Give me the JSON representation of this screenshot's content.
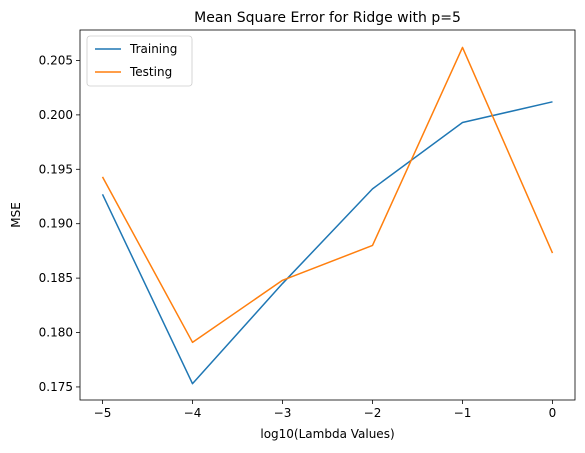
{
  "chart_data": {
    "type": "line",
    "title": "Mean Square Error for Ridge with p=5",
    "xlabel": "log10(Lambda Values)",
    "ylabel": "MSE",
    "x": [
      -5,
      -4,
      -3,
      -2,
      -1,
      0
    ],
    "series": [
      {
        "name": "Training",
        "color": "#1f77b4",
        "values": [
          0.1927,
          0.1753,
          0.1845,
          0.1932,
          0.1993,
          0.2012
        ]
      },
      {
        "name": "Testing",
        "color": "#ff7f0e",
        "values": [
          0.1943,
          0.1791,
          0.1848,
          0.188,
          0.2062,
          0.1873
        ]
      }
    ],
    "xlim": [
      -5.25,
      0.25
    ],
    "ylim": [
      0.1738,
      0.2078
    ],
    "xticks": [
      -5,
      -4,
      -3,
      -2,
      -1,
      0
    ],
    "xtick_labels": [
      "−5",
      "−4",
      "−3",
      "−2",
      "−1",
      "0"
    ],
    "yticks": [
      0.175,
      0.18,
      0.185,
      0.19,
      0.195,
      0.2,
      0.205
    ],
    "ytick_labels": [
      "0.175",
      "0.180",
      "0.185",
      "0.190",
      "0.195",
      "0.200",
      "0.205"
    ],
    "grid": false,
    "legend_position": "top-left"
  }
}
